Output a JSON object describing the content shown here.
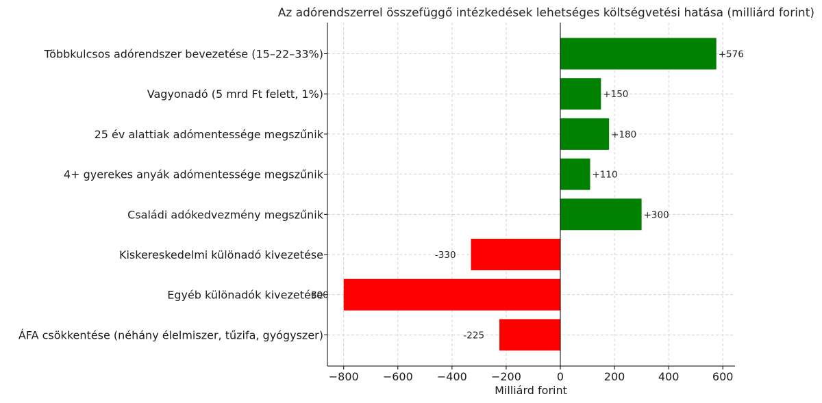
{
  "chart_data": {
    "type": "bar",
    "orientation": "horizontal",
    "title": "Az adórendszerrel összefüggő intézkedések lehetséges költségvetési hatása (milliárd forint)",
    "xlabel": "Milliárd forint",
    "ylabel": "",
    "xlim": [
      -860,
      645
    ],
    "xticks": [
      -800,
      -600,
      -400,
      -200,
      0,
      200,
      400,
      600
    ],
    "xtick_labels": [
      "−800",
      "−600",
      "−400",
      "−200",
      "0",
      "200",
      "400",
      "600"
    ],
    "grid": true,
    "categories": [
      "Többkulcsos adórendszer bevezetése (15–22–33%)",
      "Vagyonadó (5 mrd Ft felett, 1%)",
      "25 év alattiak adómentessége megszűnik",
      "4+ gyerekes anyák adómentessége megszűnik",
      "Családi adókedvezmény megszűnik",
      "Kiskereskedelmi különadó kivezetése",
      "Egyéb különadók kivezetése",
      "ÁFA csökkentése (néhány élelmiszer, tűzifa, gyógyszer)"
    ],
    "values": [
      576,
      150,
      180,
      110,
      300,
      -330,
      -800,
      -225
    ],
    "data_labels": [
      "+576",
      "+150",
      "+180",
      "+110",
      "+300",
      "-330",
      "-800",
      "-225"
    ],
    "colors": {
      "positive": "#008000",
      "negative": "#ff0000"
    }
  }
}
